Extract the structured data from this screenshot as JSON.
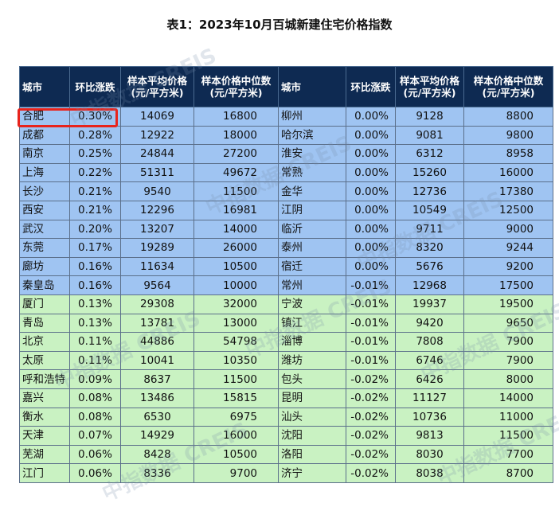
{
  "title": "表1：2023年10月百城新建住宅价格指数",
  "headers": {
    "city": "城市",
    "mom": "环比涨跌",
    "avg_price": "样本平均价格\n(元/平方米)",
    "median_price": "样本价格中位数\n(元/平方米)",
    "city2": "城市",
    "mom2": "环比涨跌",
    "avg_price2": "样本平均价格\n(元/平方米)",
    "median_price2": "样本价格中位数\n(元/平方米)"
  },
  "rows": [
    {
      "band": "blue",
      "c1": "合肥",
      "p1": "0.30%",
      "a1": "14069",
      "m1": "16800",
      "c2": "柳州",
      "p2": "0.00%",
      "a2": "9128",
      "m2": "8800"
    },
    {
      "band": "blue",
      "c1": "成都",
      "p1": "0.28%",
      "a1": "12922",
      "m1": "18000",
      "c2": "哈尔滨",
      "p2": "0.00%",
      "a2": "9081",
      "m2": "9800"
    },
    {
      "band": "blue",
      "c1": "南京",
      "p1": "0.25%",
      "a1": "24844",
      "m1": "27200",
      "c2": "淮安",
      "p2": "0.00%",
      "a2": "6312",
      "m2": "8958"
    },
    {
      "band": "blue",
      "c1": "上海",
      "p1": "0.22%",
      "a1": "51311",
      "m1": "49672",
      "c2": "常熟",
      "p2": "0.00%",
      "a2": "15260",
      "m2": "16000"
    },
    {
      "band": "blue",
      "c1": "长沙",
      "p1": "0.21%",
      "a1": "9540",
      "m1": "11500",
      "c2": "金华",
      "p2": "0.00%",
      "a2": "12736",
      "m2": "17380"
    },
    {
      "band": "blue",
      "c1": "西安",
      "p1": "0.21%",
      "a1": "12296",
      "m1": "16981",
      "c2": "江阴",
      "p2": "0.00%",
      "a2": "10549",
      "m2": "12500"
    },
    {
      "band": "blue",
      "c1": "武汉",
      "p1": "0.20%",
      "a1": "13207",
      "m1": "14000",
      "c2": "临沂",
      "p2": "0.00%",
      "a2": "9711",
      "m2": "9000"
    },
    {
      "band": "blue",
      "c1": "东莞",
      "p1": "0.17%",
      "a1": "19289",
      "m1": "26000",
      "c2": "泰州",
      "p2": "0.00%",
      "a2": "8320",
      "m2": "9244"
    },
    {
      "band": "blue",
      "c1": "廊坊",
      "p1": "0.16%",
      "a1": "11634",
      "m1": "10500",
      "c2": "宿迁",
      "p2": "0.00%",
      "a2": "5676",
      "m2": "9200"
    },
    {
      "band": "blue",
      "c1": "秦皇岛",
      "p1": "0.16%",
      "a1": "9564",
      "m1": "10000",
      "c2": "常州",
      "p2": "-0.01%",
      "a2": "12968",
      "m2": "17500"
    },
    {
      "band": "green",
      "c1": "厦门",
      "p1": "0.13%",
      "a1": "29308",
      "m1": "32000",
      "c2": "宁波",
      "p2": "-0.01%",
      "a2": "19937",
      "m2": "19500"
    },
    {
      "band": "green",
      "c1": "青岛",
      "p1": "0.13%",
      "a1": "13781",
      "m1": "13000",
      "c2": "镇江",
      "p2": "-0.01%",
      "a2": "9420",
      "m2": "9650"
    },
    {
      "band": "green",
      "c1": "北京",
      "p1": "0.11%",
      "a1": "44886",
      "m1": "54798",
      "c2": "淄博",
      "p2": "-0.01%",
      "a2": "7808",
      "m2": "7900"
    },
    {
      "band": "green",
      "c1": "太原",
      "p1": "0.11%",
      "a1": "10041",
      "m1": "10350",
      "c2": "潍坊",
      "p2": "-0.01%",
      "a2": "6746",
      "m2": "7900"
    },
    {
      "band": "green",
      "c1": "呼和浩特",
      "p1": "0.09%",
      "a1": "8637",
      "m1": "11500",
      "c2": "包头",
      "p2": "-0.02%",
      "a2": "6426",
      "m2": "8000"
    },
    {
      "band": "green",
      "c1": "嘉兴",
      "p1": "0.08%",
      "a1": "13486",
      "m1": "15815",
      "c2": "昆明",
      "p2": "-0.02%",
      "a2": "11127",
      "m2": "14000"
    },
    {
      "band": "green",
      "c1": "衡水",
      "p1": "0.08%",
      "a1": "6530",
      "m1": "6975",
      "c2": "汕头",
      "p2": "-0.02%",
      "a2": "10736",
      "m2": "11000"
    },
    {
      "band": "green",
      "c1": "天津",
      "p1": "0.07%",
      "a1": "14929",
      "m1": "16000",
      "c2": "沈阳",
      "p2": "-0.02%",
      "a2": "9813",
      "m2": "11500"
    },
    {
      "band": "green",
      "c1": "芜湖",
      "p1": "0.06%",
      "a1": "8428",
      "m1": "10500",
      "c2": "洛阳",
      "p2": "-0.02%",
      "a2": "8030",
      "m2": "7700"
    },
    {
      "band": "green",
      "c1": "江门",
      "p1": "0.06%",
      "a1": "8336",
      "m1": "9700",
      "c2": "济宁",
      "p2": "-0.02%",
      "a2": "8038",
      "m2": "8700"
    }
  ],
  "watermark": {
    "text": "中指数据 CREIS"
  },
  "colors": {
    "header_bg": "#0e2a52",
    "band_blue": "#9fc4f2",
    "band_green": "#c9f2c2",
    "highlight": "#e8231c"
  }
}
